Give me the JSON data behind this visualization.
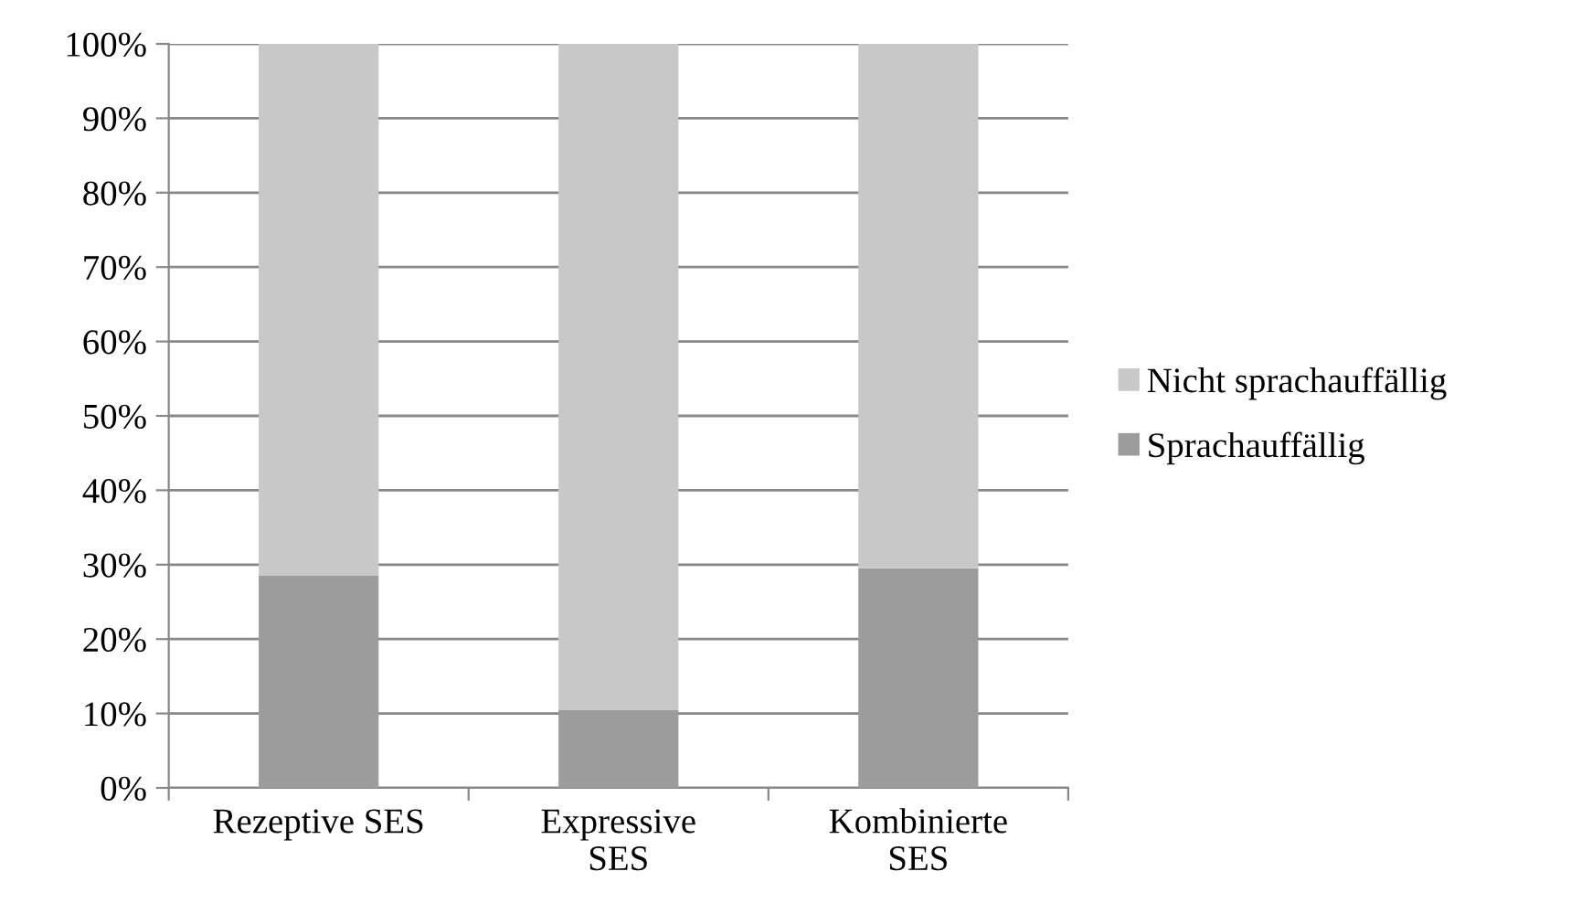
{
  "chart_data": {
    "type": "bar",
    "stacked": true,
    "categories": [
      "Rezeptive SES",
      "Expressive\nSES",
      "Kombinierte\nSES"
    ],
    "series": [
      {
        "name": "Sprachauffällig",
        "color": "#9c9c9c",
        "values": [
          28.5,
          10.5,
          29.5
        ]
      },
      {
        "name": "Nicht sprachauffällig",
        "color": "#c8c8c8",
        "values": [
          71.5,
          89.5,
          70.5
        ]
      }
    ],
    "ylim": [
      0,
      100
    ],
    "yticks": [
      {
        "value": 0,
        "label": "0%"
      },
      {
        "value": 10,
        "label": "10%"
      },
      {
        "value": 20,
        "label": "20%"
      },
      {
        "value": 30,
        "label": "30%"
      },
      {
        "value": 40,
        "label": "40%"
      },
      {
        "value": 50,
        "label": "50%"
      },
      {
        "value": 60,
        "label": "60%"
      },
      {
        "value": 70,
        "label": "70%"
      },
      {
        "value": 80,
        "label": "80%"
      },
      {
        "value": 90,
        "label": "90%"
      },
      {
        "value": 100,
        "label": "100%"
      }
    ],
    "grid": "y",
    "legend": "right"
  }
}
